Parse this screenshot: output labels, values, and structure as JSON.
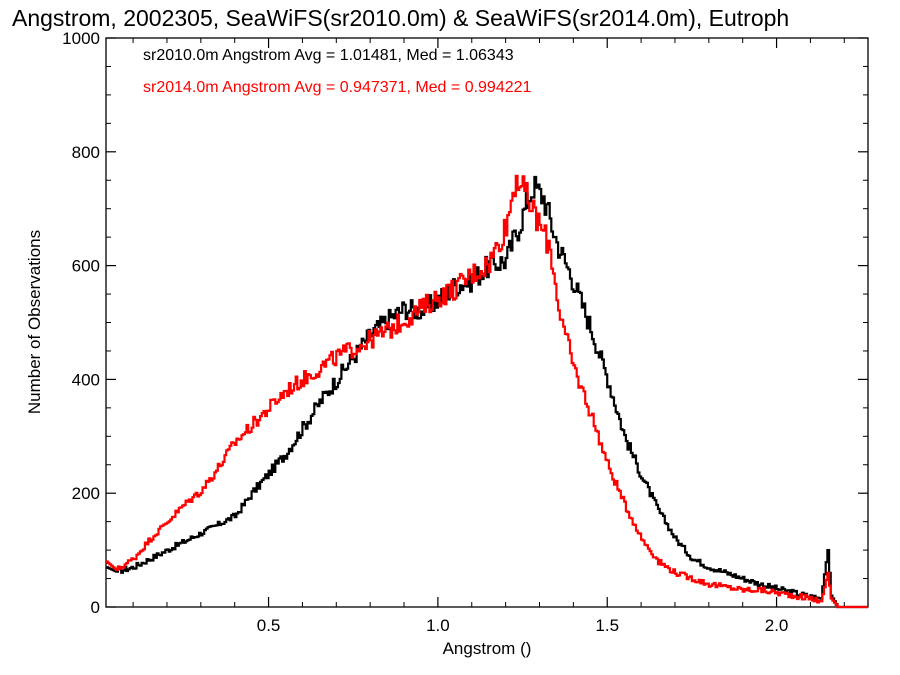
{
  "chart_data": {
    "type": "line",
    "step": true,
    "title": "Angstrom, 2002305, SeaWiFS(sr2010.0m) & SeaWiFS(sr2014.0m), Eutroph",
    "xlabel": "Angstrom ()",
    "ylabel": "Number of Observations",
    "xlim": [
      0.02,
      2.27
    ],
    "ylim": [
      0,
      1000
    ],
    "x_ticks": [
      0.5,
      1.0,
      1.5,
      2.0
    ],
    "x_tick_labels": [
      "0.5",
      "1.0",
      "1.5",
      "2.0"
    ],
    "y_ticks": [
      0,
      200,
      400,
      600,
      800,
      1000
    ],
    "y_tick_labels": [
      "0",
      "200",
      "400",
      "600",
      "800",
      "1000"
    ],
    "grid": false,
    "legend_placement": "top-left",
    "annotations": [
      "sr2010.0m Angstrom Avg = 1.01481, Med = 1.06343",
      "sr2014.0m Angstrom Avg = 0.947371, Med = 0.994221"
    ],
    "series": [
      {
        "color": "#000000",
        "points": [
          [
            0.02,
            70
          ],
          [
            0.05,
            62
          ],
          [
            0.1,
            70
          ],
          [
            0.15,
            85
          ],
          [
            0.2,
            100
          ],
          [
            0.25,
            115
          ],
          [
            0.3,
            130
          ],
          [
            0.35,
            145
          ],
          [
            0.4,
            160
          ],
          [
            0.45,
            200
          ],
          [
            0.5,
            235
          ],
          [
            0.55,
            270
          ],
          [
            0.6,
            315
          ],
          [
            0.65,
            360
          ],
          [
            0.7,
            400
          ],
          [
            0.75,
            440
          ],
          [
            0.8,
            480
          ],
          [
            0.85,
            505
          ],
          [
            0.9,
            525
          ],
          [
            0.95,
            520
          ],
          [
            1.0,
            540
          ],
          [
            1.05,
            565
          ],
          [
            1.1,
            575
          ],
          [
            1.15,
            600
          ],
          [
            1.2,
            610
          ],
          [
            1.25,
            690
          ],
          [
            1.28,
            740
          ],
          [
            1.31,
            720
          ],
          [
            1.35,
            640
          ],
          [
            1.4,
            570
          ],
          [
            1.45,
            490
          ],
          [
            1.5,
            400
          ],
          [
            1.55,
            300
          ],
          [
            1.6,
            230
          ],
          [
            1.65,
            170
          ],
          [
            1.7,
            120
          ],
          [
            1.75,
            85
          ],
          [
            1.8,
            70
          ],
          [
            1.85,
            60
          ],
          [
            1.9,
            50
          ],
          [
            1.95,
            40
          ],
          [
            2.0,
            32
          ],
          [
            2.05,
            25
          ],
          [
            2.1,
            18
          ],
          [
            2.13,
            15
          ],
          [
            2.15,
            100
          ],
          [
            2.16,
            20
          ],
          [
            2.18,
            0
          ],
          [
            2.27,
            0
          ]
        ]
      },
      {
        "color": "#ff0000",
        "points": [
          [
            0.02,
            80
          ],
          [
            0.05,
            65
          ],
          [
            0.1,
            85
          ],
          [
            0.15,
            120
          ],
          [
            0.2,
            150
          ],
          [
            0.25,
            180
          ],
          [
            0.3,
            205
          ],
          [
            0.35,
            245
          ],
          [
            0.4,
            290
          ],
          [
            0.45,
            320
          ],
          [
            0.5,
            350
          ],
          [
            0.55,
            380
          ],
          [
            0.6,
            400
          ],
          [
            0.65,
            420
          ],
          [
            0.7,
            440
          ],
          [
            0.75,
            455
          ],
          [
            0.8,
            470
          ],
          [
            0.85,
            485
          ],
          [
            0.9,
            505
          ],
          [
            0.95,
            525
          ],
          [
            1.0,
            545
          ],
          [
            1.05,
            560
          ],
          [
            1.1,
            585
          ],
          [
            1.15,
            605
          ],
          [
            1.2,
            670
          ],
          [
            1.23,
            760
          ],
          [
            1.26,
            720
          ],
          [
            1.3,
            670
          ],
          [
            1.33,
            630
          ],
          [
            1.36,
            510
          ],
          [
            1.4,
            420
          ],
          [
            1.45,
            340
          ],
          [
            1.5,
            250
          ],
          [
            1.55,
            180
          ],
          [
            1.6,
            120
          ],
          [
            1.65,
            80
          ],
          [
            1.7,
            60
          ],
          [
            1.75,
            50
          ],
          [
            1.8,
            40
          ],
          [
            1.85,
            35
          ],
          [
            1.9,
            30
          ],
          [
            1.95,
            30
          ],
          [
            2.0,
            25
          ],
          [
            2.05,
            20
          ],
          [
            2.1,
            15
          ],
          [
            2.13,
            10
          ],
          [
            2.15,
            60
          ],
          [
            2.16,
            15
          ],
          [
            2.18,
            0
          ],
          [
            2.27,
            0
          ]
        ]
      }
    ]
  }
}
